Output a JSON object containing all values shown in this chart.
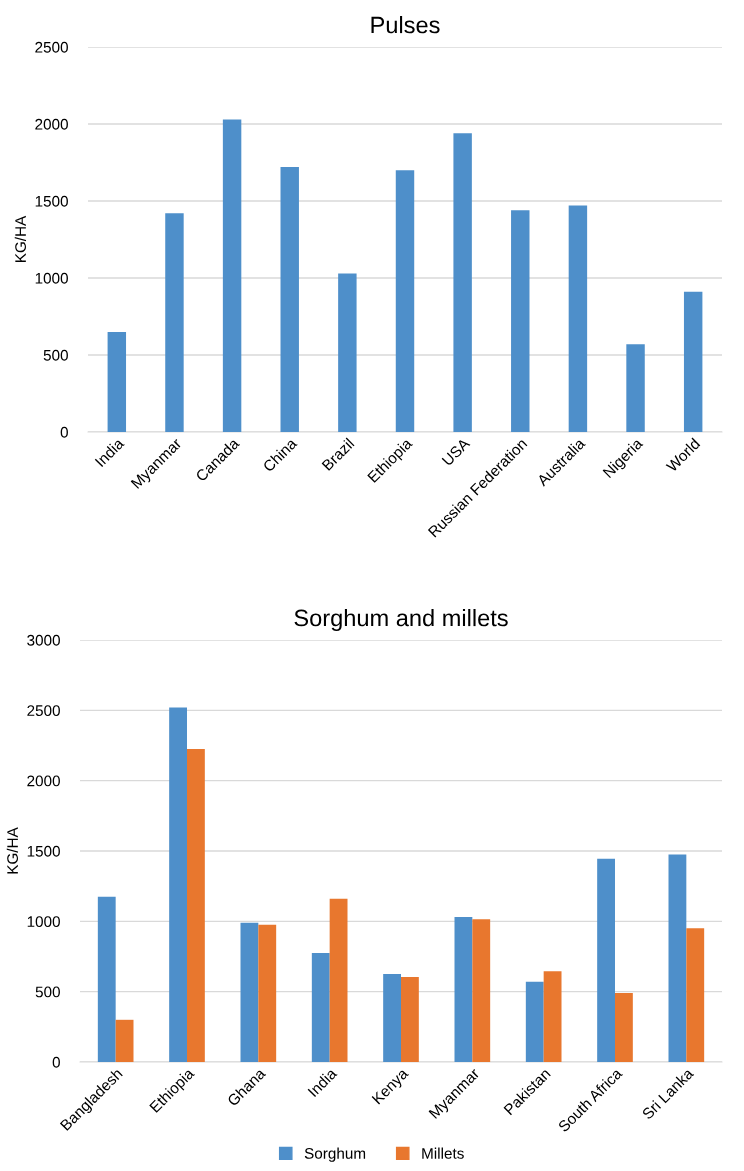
{
  "chart_data": [
    {
      "type": "bar",
      "title": "Pulses",
      "ylabel": "KG/HA",
      "categories": [
        "India",
        "Myanmar",
        "Canada",
        "China",
        "Brazil",
        "Ethiopia",
        "USA",
        "Russian Federation",
        "Australia",
        "Nigeria",
        "World"
      ],
      "series": [
        {
          "color": "#4e8fca",
          "values": [
            650,
            1420,
            2030,
            1720,
            1030,
            1700,
            1940,
            1440,
            1470,
            570,
            910
          ]
        }
      ],
      "ylim": [
        0,
        2500
      ],
      "yticks": [
        0,
        500,
        1000,
        1500,
        2000,
        2500
      ],
      "grid": "y"
    },
    {
      "type": "bar",
      "title": "Sorghum and millets",
      "ylabel": "KG/HA",
      "categories": [
        "Bangladesh",
        "Ethiopia",
        "Ghana",
        "India",
        "Kenya",
        "Myanmar",
        "Pakistan",
        "South Africa",
        "Sri Lanka"
      ],
      "series": [
        {
          "name": "Sorghum",
          "color": "#4e8fca",
          "values": [
            1175,
            2520,
            990,
            775,
            625,
            1030,
            570,
            1445,
            1475
          ]
        },
        {
          "name": "Millets",
          "color": "#e8772e",
          "values": [
            300,
            2225,
            975,
            1160,
            605,
            1015,
            645,
            490,
            950
          ]
        }
      ],
      "ylim": [
        0,
        3000
      ],
      "yticks": [
        0,
        500,
        1000,
        1500,
        2000,
        2500,
        3000
      ],
      "grid": "y",
      "legend": "bottom"
    }
  ]
}
